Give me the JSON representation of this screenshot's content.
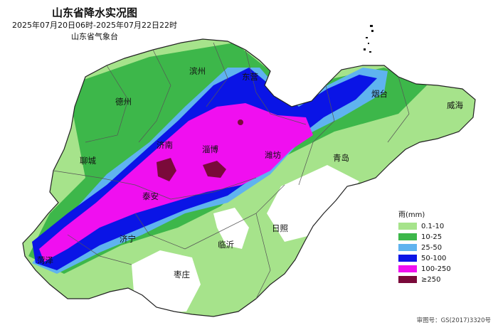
{
  "title": "山东省降水实况图",
  "time_range": "2025年07月20日06时-2025年07月22日22时",
  "source": "山东省气象台",
  "cities": [
    {
      "name": "滨州"
    },
    {
      "name": "东营"
    },
    {
      "name": "德州"
    },
    {
      "name": "烟台"
    },
    {
      "name": "威海"
    },
    {
      "name": "聊城"
    },
    {
      "name": "济南"
    },
    {
      "name": "淄博"
    },
    {
      "name": "潍坊"
    },
    {
      "name": "青岛"
    },
    {
      "name": "泰安"
    },
    {
      "name": "济宁"
    },
    {
      "name": "菏泽"
    },
    {
      "name": "临沂"
    },
    {
      "name": "日照"
    },
    {
      "name": "枣庄"
    }
  ],
  "legend": {
    "title": "雨(mm)",
    "items": [
      {
        "label": "0.1-10",
        "color": "#a6e38b"
      },
      {
        "label": "10-25",
        "color": "#3db74a"
      },
      {
        "label": "25-50",
        "color": "#5fb3ef"
      },
      {
        "label": "50-100",
        "color": "#0a14e6"
      },
      {
        "label": "100-250",
        "color": "#f00ff0"
      },
      {
        "label": "≥250",
        "color": "#7a0a3a"
      }
    ]
  },
  "footer": "审图号：GS(2017)3320号"
}
